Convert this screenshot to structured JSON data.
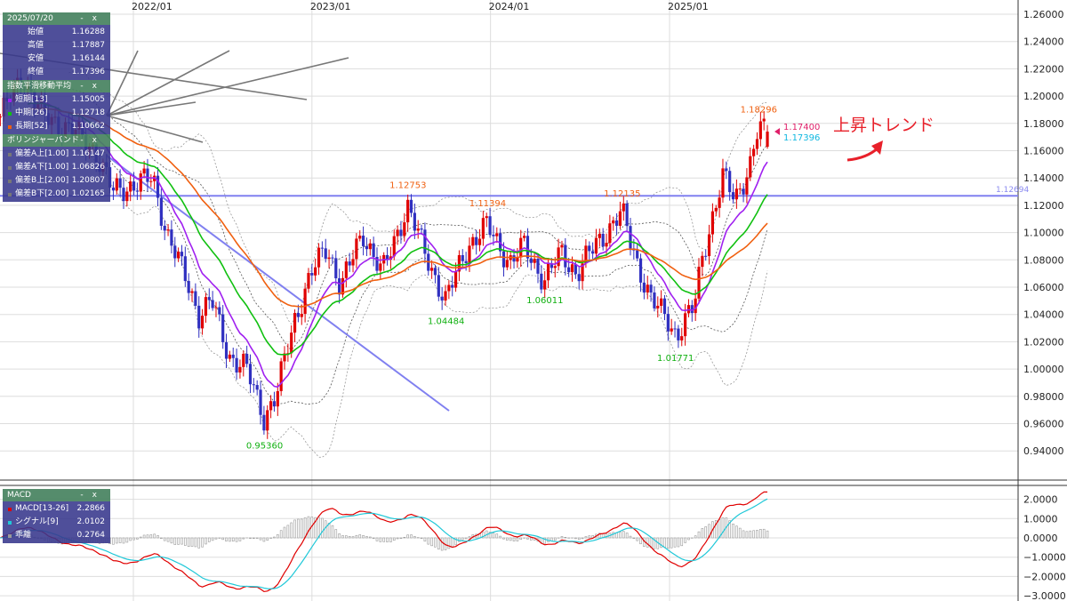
{
  "info_panel": {
    "date": "2025/07/20",
    "ohlc": [
      {
        "label": "始値",
        "value": "1.16288"
      },
      {
        "label": "高値",
        "value": "1.17887"
      },
      {
        "label": "安値",
        "value": "1.16144"
      },
      {
        "label": "終値",
        "value": "1.17396"
      }
    ]
  },
  "ema_panel": {
    "title": "指数平滑移動平均",
    "items": [
      {
        "label": "短期[13]",
        "value": "1.15005",
        "color": "#a020f0"
      },
      {
        "label": "中期[26]",
        "value": "1.12718",
        "color": "#10c010"
      },
      {
        "label": "長期[52]",
        "value": "1.10662",
        "color": "#f06010"
      }
    ]
  },
  "bb_panel": {
    "title": "ボリンジャーバンド",
    "items": [
      {
        "label": "偏差A上[1.00]",
        "value": "1.16147"
      },
      {
        "label": "偏差A下[1.00]",
        "value": "1.06826"
      },
      {
        "label": "偏差B上[2.00]",
        "value": "1.20807"
      },
      {
        "label": "偏差B下[2.00]",
        "value": "1.02165"
      }
    ]
  },
  "macd_panel": {
    "title": "MACD",
    "items": [
      {
        "label": "MACD[13-26]",
        "value": "2.2866",
        "color": "#e00000"
      },
      {
        "label": "シグナル[9]",
        "value": "2.0102",
        "color": "#20c8d8"
      },
      {
        "label": "乖離",
        "value": "0.2764",
        "color": "#999999"
      }
    ]
  },
  "panel_controls": {
    "minimize": "-",
    "close": "x"
  },
  "annotation": "上昇トレンド",
  "price_tags": {
    "bid": "1.17400",
    "close": "1.17396"
  },
  "horizontal_line": {
    "value": 1.12694,
    "label": "1.12694"
  },
  "colors": {
    "up": "#e00000",
    "down": "#3030c0",
    "trendline": "#8080f0"
  },
  "chart_data": {
    "type": "candlestick",
    "timeframe": "weekly",
    "x_ticks": [
      "2022/01",
      "2023/01",
      "2024/01",
      "2025/01"
    ],
    "y_ticks": [
      "1.26000",
      "1.24000",
      "1.22000",
      "1.20000",
      "1.18000",
      "1.16000",
      "1.14000",
      "1.12000",
      "1.10000",
      "1.08000",
      "1.06000",
      "1.04000",
      "1.02000",
      "1.00000",
      "0.98000",
      "0.96000",
      "0.94000"
    ],
    "ylim": [
      0.93,
      1.265
    ],
    "macd_ticks": [
      "2.0000",
      "1.0000",
      "0.0000",
      "−1.0000",
      "−2.0000",
      "−3.0000"
    ],
    "macd_ylim": [
      -3.2,
      2.6
    ],
    "close_path": [
      [
        "2021-04-04",
        1.185
      ],
      [
        "2021-05-20",
        1.215
      ],
      [
        "2021-07-01",
        1.185
      ],
      [
        "2021-09-01",
        1.175
      ],
      [
        "2021-10-15",
        1.16
      ],
      [
        "2021-11-20",
        1.13
      ],
      [
        "2022-01-01",
        1.135
      ],
      [
        "2022-02-10",
        1.14
      ],
      [
        "2022-03-10",
        1.1
      ],
      [
        "2022-04-25",
        1.06
      ],
      [
        "2022-05-15",
        1.04
      ],
      [
        "2022-06-10",
        1.05
      ],
      [
        "2022-07-15",
        1.01
      ],
      [
        "2022-08-20",
        1.0
      ],
      [
        "2022-09-25",
        0.965
      ],
      [
        "2022-10-20",
        0.98
      ],
      [
        "2022-11-25",
        1.035
      ],
      [
        "2022-12-31",
        1.07
      ],
      [
        "2023-02-01",
        1.09
      ],
      [
        "2023-03-01",
        1.06
      ],
      [
        "2023-04-15",
        1.1
      ],
      [
        "2023-05-25",
        1.07
      ],
      [
        "2023-07-15",
        1.12
      ],
      [
        "2023-08-20",
        1.085
      ],
      [
        "2023-10-01",
        1.05
      ],
      [
        "2023-11-15",
        1.09
      ],
      [
        "2023-12-25",
        1.105
      ],
      [
        "2024-02-10",
        1.078
      ],
      [
        "2024-03-10",
        1.09
      ],
      [
        "2024-04-20",
        1.065
      ],
      [
        "2024-05-25",
        1.085
      ],
      [
        "2024-06-25",
        1.07
      ],
      [
        "2024-08-01",
        1.09
      ],
      [
        "2024-09-25",
        1.115
      ],
      [
        "2024-10-25",
        1.08
      ],
      [
        "2024-11-25",
        1.05
      ],
      [
        "2024-12-31",
        1.035
      ],
      [
        "2025-01-15",
        1.025
      ],
      [
        "2025-02-20",
        1.045
      ],
      [
        "2025-03-10",
        1.085
      ],
      [
        "2025-04-20",
        1.14
      ],
      [
        "2025-05-15",
        1.125
      ],
      [
        "2025-06-15",
        1.15
      ],
      [
        "2025-07-01",
        1.175
      ],
      [
        "2025-07-20",
        1.17396
      ]
    ],
    "last_candle": {
      "date": "2025/07/20",
      "open": 1.16288,
      "high": 1.17887,
      "low": 1.16144,
      "close": 1.17396
    },
    "annotated_extremes": [
      {
        "date": "2022-09-25",
        "value": "0.95360",
        "kind": "low"
      },
      {
        "date": "2023-07-15",
        "value": "1.12753",
        "kind": "high"
      },
      {
        "date": "2023-10-01",
        "value": "1.04484",
        "kind": "low"
      },
      {
        "date": "2023-12-25",
        "value": "1.11394",
        "kind": "high"
      },
      {
        "date": "2024-04-20",
        "value": "1.06011",
        "kind": "low"
      },
      {
        "date": "2024-09-25",
        "value": "1.12135",
        "kind": "high"
      },
      {
        "date": "2025-01-12",
        "value": "1.01771",
        "kind": "low"
      },
      {
        "date": "2025-07-01",
        "value": "1.18296",
        "kind": "high"
      }
    ],
    "series": [
      {
        "name": "短期[13]",
        "type": "ema",
        "period": 13
      },
      {
        "name": "中期[26]",
        "type": "ema",
        "period": 26
      },
      {
        "name": "長期[52]",
        "type": "ema",
        "period": 52
      },
      {
        "name": "ボリンジャーバンド",
        "type": "bollinger",
        "sigmas": [
          1,
          2
        ]
      },
      {
        "name": "MACD[13-26]"
      },
      {
        "name": "シグナル[9]"
      },
      {
        "name": "乖離",
        "type": "histogram"
      }
    ]
  }
}
